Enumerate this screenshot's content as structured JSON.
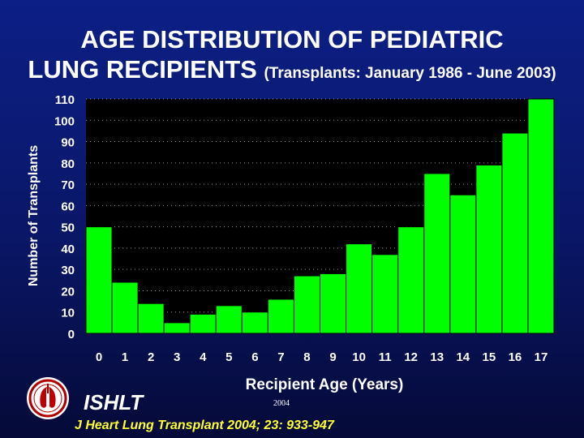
{
  "header": {
    "title_line1": "AGE DISTRIBUTION OF PEDIATRIC",
    "title_line2": "LUNG RECIPIENTS",
    "title_sub": "(Transplants: January 1986 - June 2003)"
  },
  "footer": {
    "org": "ISHLT",
    "year": "2004",
    "citation": "J Heart Lung Transplant 2004; 23: 933-947"
  },
  "colors": {
    "bar": "#00ff00",
    "plot_bg": "#000000",
    "text": "#ffffff",
    "citation": "#ffff33"
  },
  "chart_data": {
    "type": "bar",
    "title": "AGE DISTRIBUTION OF PEDIATRIC LUNG RECIPIENTS (Transplants: January 1986 - June 2003)",
    "xlabel": "Recipient Age (Years)",
    "ylabel": "Number of Transplants",
    "categories": [
      "0",
      "1",
      "2",
      "3",
      "4",
      "5",
      "6",
      "7",
      "8",
      "9",
      "10",
      "11",
      "12",
      "13",
      "14",
      "15",
      "16",
      "17"
    ],
    "values": [
      50,
      24,
      14,
      5,
      9,
      13,
      10,
      16,
      27,
      28,
      42,
      37,
      50,
      75,
      65,
      79,
      94,
      110
    ],
    "ylim": [
      0,
      110
    ],
    "yticks": [
      0,
      10,
      20,
      30,
      40,
      50,
      60,
      70,
      80,
      90,
      100,
      110
    ],
    "grid": true,
    "legend": "none"
  }
}
